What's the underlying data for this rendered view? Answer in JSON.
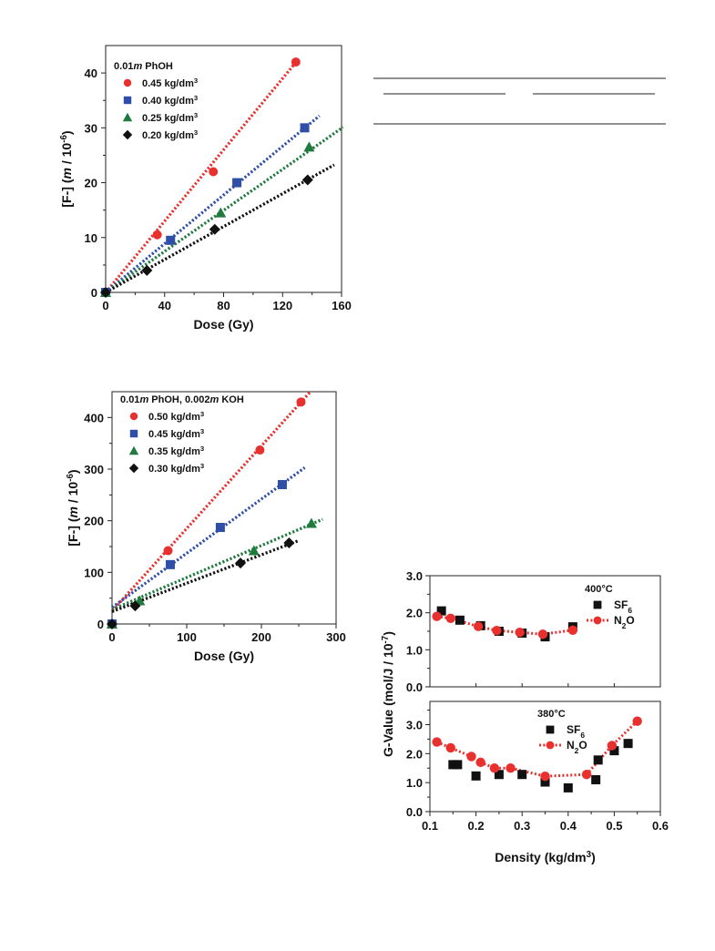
{
  "chart_data": [
    {
      "type": "scatter",
      "xlabel": "Dose (Gy)",
      "ylabel": "[F-] (m / 10^-6)",
      "xlim": [
        0,
        160
      ],
      "ylim": [
        0,
        45
      ],
      "xticks": [
        "0",
        "40",
        "80",
        "120",
        "160"
      ],
      "yticks": [
        "0",
        "10",
        "20",
        "30",
        "40"
      ],
      "legend_title": "0.01m PhOH",
      "legend_position": "top-left",
      "series": [
        {
          "name": "0.45 kg/dm3",
          "color": "#e8312f",
          "marker": "circle",
          "x": [
            0,
            35,
            73,
            129
          ],
          "y": [
            0,
            10.5,
            22,
            42
          ],
          "fit_slope": 0.325,
          "fit_xmax": 129
        },
        {
          "name": "0.40 kg/dm3",
          "color": "#2e4ea8",
          "marker": "square",
          "x": [
            0,
            44,
            89,
            135
          ],
          "y": [
            0,
            9.5,
            20,
            30
          ],
          "fit_slope": 0.222,
          "fit_xmax": 145
        },
        {
          "name": "0.25 kg/dm3",
          "color": "#1f7a3e",
          "marker": "triangle",
          "x": [
            0,
            78,
            138
          ],
          "y": [
            0,
            14.5,
            26.5
          ],
          "fit_slope": 0.187,
          "fit_xmax": 161
        },
        {
          "name": "0.20 kg/dm3",
          "color": "#111111",
          "marker": "diamond",
          "x": [
            0,
            28,
            74,
            137
          ],
          "y": [
            0,
            4,
            11.5,
            20.5
          ],
          "fit_slope": 0.15,
          "fit_xmax": 155
        }
      ]
    },
    {
      "type": "scatter",
      "xlabel": "Dose (Gy)",
      "ylabel": "[F-] (m / 10^-6)",
      "xlim": [
        0,
        300
      ],
      "ylim": [
        0,
        450
      ],
      "xticks": [
        "0",
        "100",
        "200",
        "300"
      ],
      "yticks": [
        "0",
        "100",
        "200",
        "300",
        "400"
      ],
      "legend_title": "0.01m PhOH, 0.002m KOH",
      "legend_position": "top-left",
      "series": [
        {
          "name": "0.50 kg/dm3",
          "color": "#e8312f",
          "marker": "circle",
          "x": [
            0,
            75,
            198,
            253
          ],
          "y": [
            0,
            142,
            337,
            430
          ],
          "fit_slope": 1.6,
          "fit_intercept": 25,
          "fit_xmax": 265
        },
        {
          "name": "0.45 kg/dm3",
          "color": "#2e4ea8",
          "marker": "square",
          "x": [
            0,
            78,
            145,
            228
          ],
          "y": [
            0,
            115,
            187,
            270
          ],
          "fit_slope": 1.05,
          "fit_intercept": 32,
          "fit_xmax": 258
        },
        {
          "name": "0.35 kg/dm3",
          "color": "#1f7a3e",
          "marker": "triangle",
          "x": [
            0,
            37,
            190,
            267
          ],
          "y": [
            0,
            45,
            142,
            195
          ],
          "fit_slope": 0.62,
          "fit_intercept": 28,
          "fit_xmax": 282
        },
        {
          "name": "0.30 kg/dm3",
          "color": "#111111",
          "marker": "diamond",
          "x": [
            0,
            31,
            172,
            237
          ],
          "y": [
            0,
            35,
            118,
            157
          ],
          "fit_slope": 0.55,
          "fit_intercept": 24,
          "fit_xmax": 250
        }
      ]
    },
    {
      "type": "scatter",
      "xlabel": "Density (kg/dm3)",
      "ylabel": "G-Value (mol/J / 10^-7)",
      "xlim": [
        0.1,
        0.6
      ],
      "xticks": [
        "0.1",
        "0.2",
        "0.3",
        "0.4",
        "0.5",
        "0.6"
      ],
      "panels": [
        {
          "label": "400°C",
          "ylim": [
            0,
            3
          ],
          "yticks": [
            "0.0",
            "1.0",
            "2.0",
            "3.0"
          ],
          "series": [
            {
              "name": "SF6",
              "color": "#111111",
              "marker": "square",
              "x": [
                0.125,
                0.165,
                0.21,
                0.25,
                0.3,
                0.35,
                0.41
              ],
              "y": [
                2.05,
                1.8,
                1.65,
                1.5,
                1.45,
                1.35,
                1.62
              ]
            },
            {
              "name": "N2O",
              "color": "#e8312f",
              "marker": "circle",
              "line": "dotted",
              "x": [
                0.115,
                0.145,
                0.205,
                0.245,
                0.295,
                0.345,
                0.41
              ],
              "y": [
                1.9,
                1.85,
                1.63,
                1.52,
                1.47,
                1.42,
                1.53
              ]
            }
          ]
        },
        {
          "label": "380°C",
          "ylim": [
            0,
            3.8
          ],
          "yticks": [
            "0.0",
            "1.0",
            "2.0",
            "3.0"
          ],
          "series": [
            {
              "name": "SF6",
              "color": "#111111",
              "marker": "square",
              "x": [
                0.15,
                0.16,
                0.2,
                0.25,
                0.3,
                0.35,
                0.4,
                0.46,
                0.465,
                0.5,
                0.53
              ],
              "y": [
                1.62,
                1.62,
                1.23,
                1.28,
                1.28,
                1.02,
                0.82,
                1.1,
                1.78,
                2.1,
                2.35
              ]
            },
            {
              "name": "N2O",
              "color": "#e8312f",
              "marker": "circle",
              "line": "dotted",
              "x": [
                0.115,
                0.145,
                0.19,
                0.21,
                0.24,
                0.275,
                0.35,
                0.44,
                0.495,
                0.55
              ],
              "y": [
                2.4,
                2.2,
                1.9,
                1.7,
                1.5,
                1.5,
                1.22,
                1.28,
                2.28,
                3.12
              ]
            }
          ]
        }
      ]
    }
  ]
}
